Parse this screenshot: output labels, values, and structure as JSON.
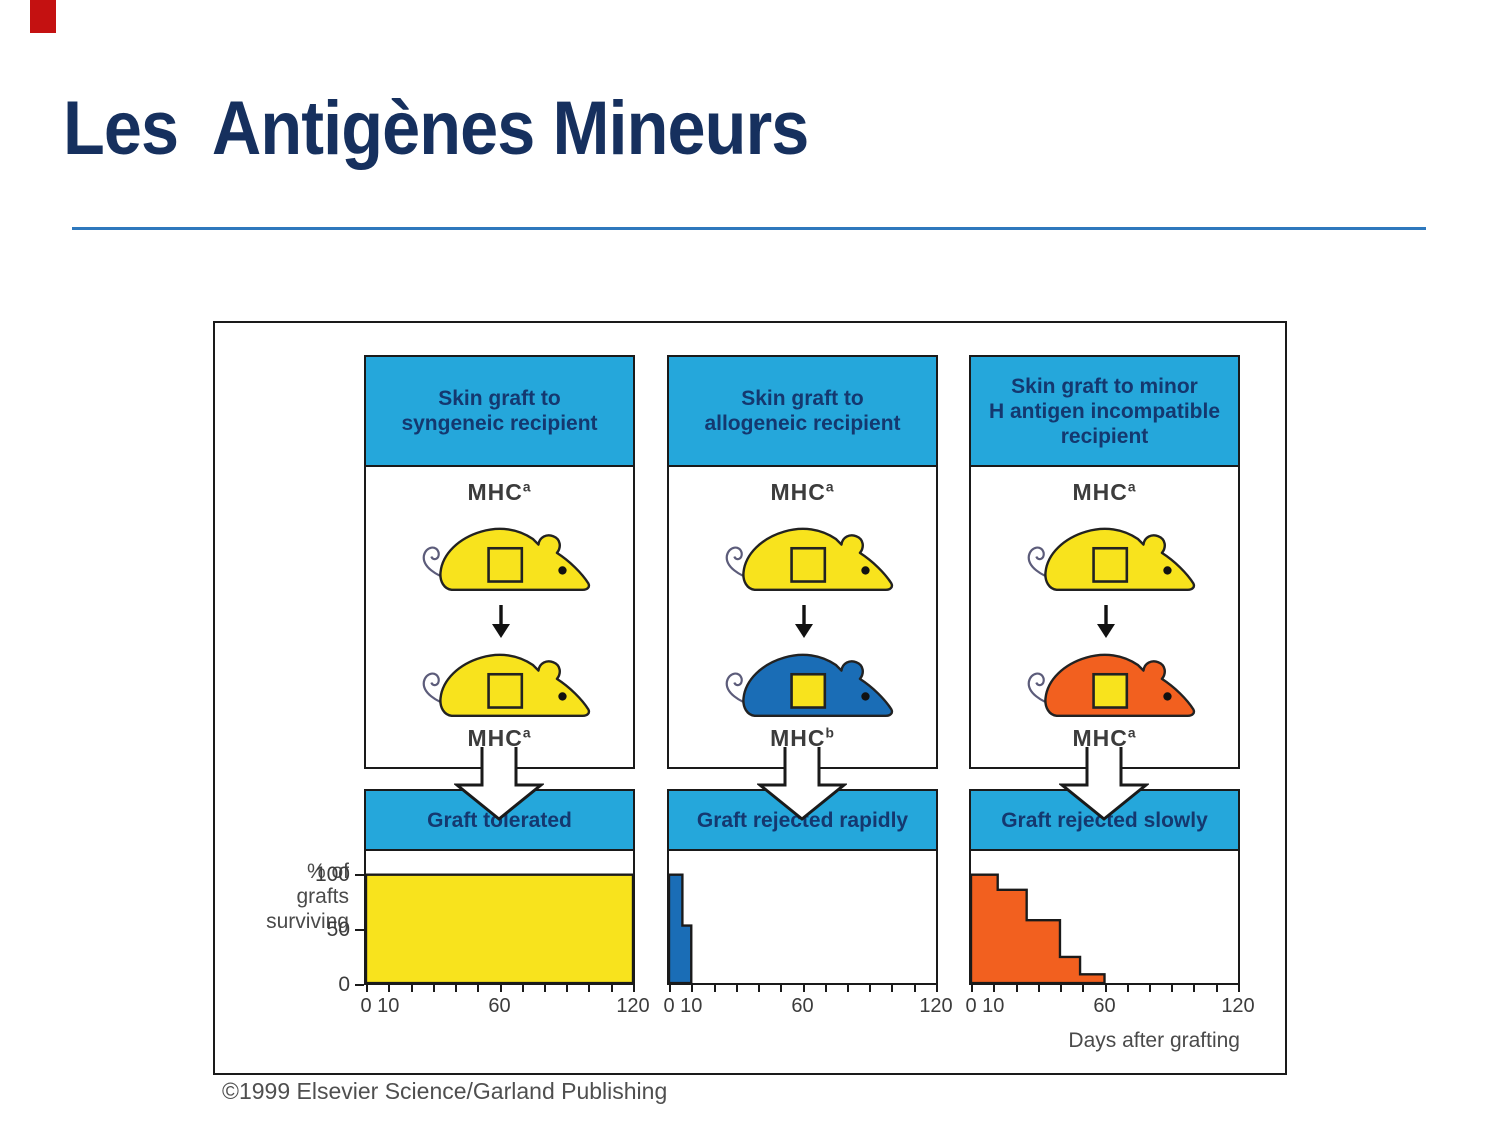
{
  "slide": {
    "title": "Les  Antigènes Mineurs",
    "title_color": "#16305e",
    "accent_color": "#c41111",
    "rule_color": "#2e78bd"
  },
  "figure": {
    "mhc_label": "MHC",
    "y_axis_label": "% of\ngrafts\nsurviving",
    "x_axis_label": "Days after grafting",
    "copyright": "©1999 Elsevier Science/Garland Publishing",
    "band_color": "#25a7db",
    "band_text_color": "#14386f",
    "outline_color": "#1a1a1a",
    "columns": [
      {
        "header": "Skin graft to\nsyngeneic recipient",
        "donor_mhc_sup": "a",
        "recipient_mhc_sup": "a",
        "result": "Graft tolerated",
        "donor_color": "#f8e31d",
        "recipient_color": "#f8e31d",
        "graft_color": "#f8e31d"
      },
      {
        "header": "Skin graft to\nallogeneic recipient",
        "donor_mhc_sup": "a",
        "recipient_mhc_sup": "b",
        "result": "Graft rejected rapidly",
        "donor_color": "#f8e31d",
        "recipient_color": "#1a6db6",
        "graft_color": "#f8e31d"
      },
      {
        "header": "Skin graft to minor\nH antigen incompatible\nrecipient",
        "donor_mhc_sup": "a",
        "recipient_mhc_sup": "a",
        "result": "Graft rejected slowly",
        "donor_color": "#f8e31d",
        "recipient_color": "#f2601f",
        "graft_color": "#f8e31d"
      }
    ]
  },
  "chart_data": [
    {
      "type": "area",
      "title": "Graft tolerated",
      "color": "#f8e31d",
      "xlim": [
        0,
        120
      ],
      "ylim": [
        0,
        110
      ],
      "x_ticks": [
        0,
        10,
        60,
        120
      ],
      "minor_tick_step": 10,
      "y_ticks": [
        100,
        50,
        0
      ],
      "xlabel": "Days after grafting",
      "ylabel": "% of grafts surviving",
      "points": [
        [
          0,
          100
        ],
        [
          120,
          100
        ],
        [
          120,
          0
        ]
      ]
    },
    {
      "type": "area",
      "title": "Graft rejected rapidly",
      "color": "#1a6db6",
      "xlim": [
        0,
        120
      ],
      "ylim": [
        0,
        110
      ],
      "x_ticks": [
        0,
        10,
        60,
        120
      ],
      "minor_tick_step": 10,
      "points": [
        [
          0,
          100
        ],
        [
          6,
          100
        ],
        [
          6,
          53
        ],
        [
          10,
          53
        ],
        [
          10,
          0
        ]
      ]
    },
    {
      "type": "area",
      "title": "Graft rejected slowly",
      "color": "#f2601f",
      "xlim": [
        0,
        120
      ],
      "ylim": [
        0,
        110
      ],
      "x_ticks": [
        0,
        10,
        60,
        120
      ],
      "minor_tick_step": 10,
      "points": [
        [
          0,
          100
        ],
        [
          12,
          100
        ],
        [
          12,
          86
        ],
        [
          25,
          86
        ],
        [
          25,
          58
        ],
        [
          40,
          58
        ],
        [
          40,
          24
        ],
        [
          49,
          24
        ],
        [
          49,
          8
        ],
        [
          60,
          8
        ],
        [
          60,
          0
        ]
      ]
    }
  ]
}
